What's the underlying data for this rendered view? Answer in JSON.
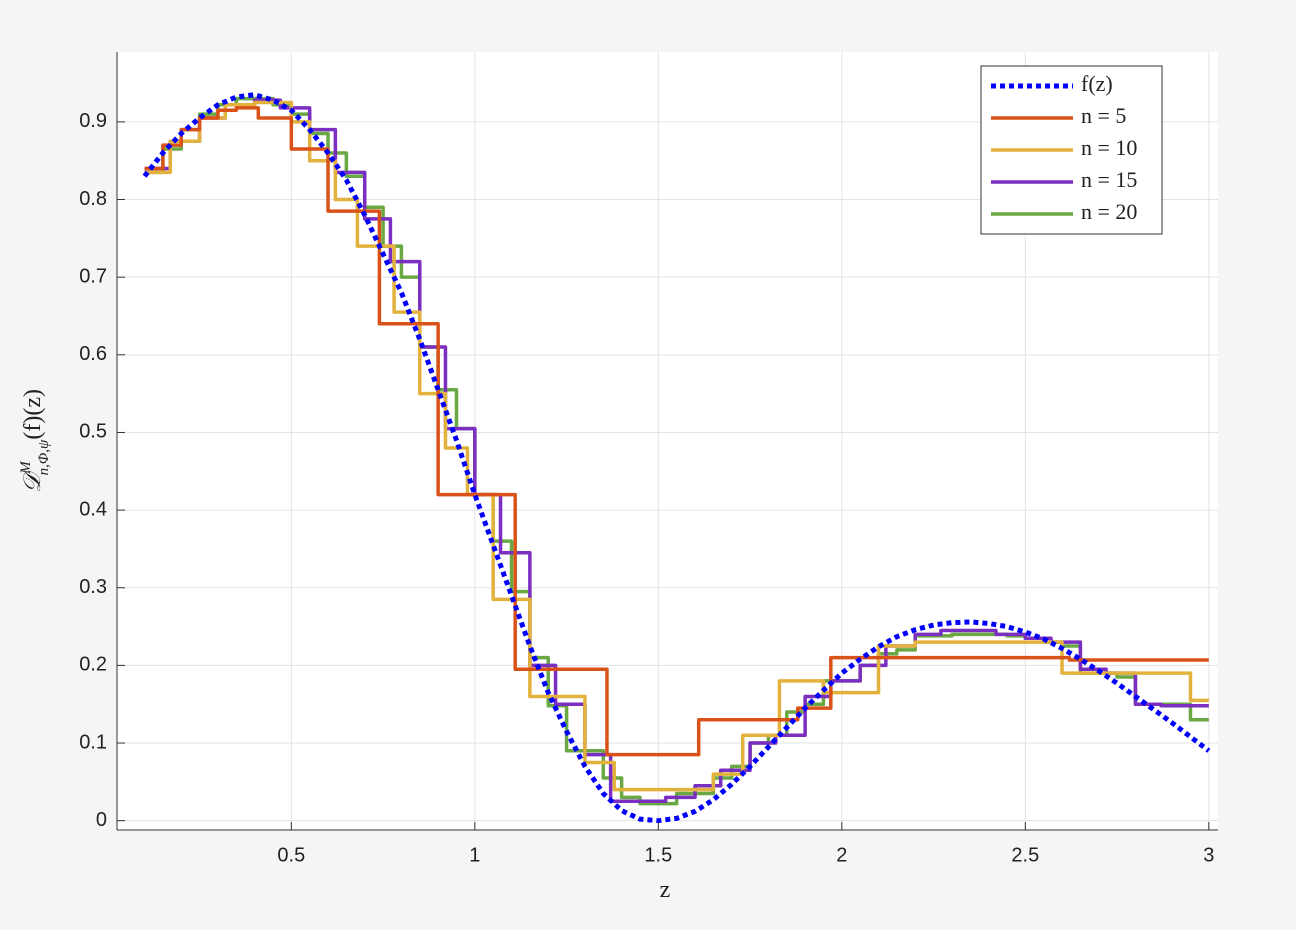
{
  "chart_data": {
    "type": "line",
    "xlabel": "z",
    "ylabel": {
      "base": "𝒟",
      "sup": "M",
      "sub": "n,Φ,ψ",
      "rest": "(f)(z)"
    },
    "xlim": [
      0.025,
      3.025
    ],
    "ylim": [
      -0.012,
      0.99
    ],
    "xticks": [
      0.5,
      1,
      1.5,
      2,
      2.5,
      3
    ],
    "yticks": [
      0,
      0.1,
      0.2,
      0.3,
      0.4,
      0.5,
      0.6,
      0.7,
      0.8,
      0.9
    ],
    "grid": true,
    "legend": "upper right",
    "series": [
      {
        "name": "f(z)",
        "color": "#0000ff",
        "line_style": "dotted",
        "step": false,
        "x": [
          0.1,
          0.15,
          0.2,
          0.25,
          0.3,
          0.35,
          0.4,
          0.45,
          0.5,
          0.55,
          0.6,
          0.65,
          0.7,
          0.75,
          0.8,
          0.85,
          0.9,
          0.95,
          1.0,
          1.05,
          1.1,
          1.15,
          1.2,
          1.25,
          1.3,
          1.35,
          1.4,
          1.45,
          1.5,
          1.55,
          1.6,
          1.65,
          1.7,
          1.75,
          1.8,
          1.85,
          1.9,
          1.95,
          2.0,
          2.05,
          2.1,
          2.15,
          2.2,
          2.25,
          2.3,
          2.35,
          2.4,
          2.45,
          2.5,
          2.55,
          2.6,
          2.65,
          2.7,
          2.75,
          2.8,
          2.85,
          2.9,
          2.95,
          3.0
        ],
        "values": [
          0.83,
          0.86,
          0.885,
          0.905,
          0.922,
          0.932,
          0.935,
          0.928,
          0.915,
          0.89,
          0.86,
          0.825,
          0.78,
          0.73,
          0.68,
          0.62,
          0.555,
          0.49,
          0.42,
          0.355,
          0.29,
          0.225,
          0.165,
          0.115,
          0.07,
          0.035,
          0.013,
          0.002,
          0.0,
          0.003,
          0.012,
          0.027,
          0.047,
          0.07,
          0.095,
          0.12,
          0.145,
          0.168,
          0.19,
          0.208,
          0.224,
          0.237,
          0.246,
          0.252,
          0.255,
          0.256,
          0.254,
          0.25,
          0.243,
          0.234,
          0.222,
          0.208,
          0.193,
          0.177,
          0.16,
          0.143,
          0.126,
          0.108,
          0.09
        ]
      },
      {
        "name": "n = 5",
        "color": "#d95319",
        "line_style": "solid",
        "step": true,
        "x": [
          0.1,
          0.15,
          0.2,
          0.25,
          0.3,
          0.35,
          0.41,
          0.5,
          0.6,
          0.74,
          0.9,
          1.11,
          1.36,
          1.61,
          1.88,
          1.97,
          2.62,
          3.0
        ],
        "values": [
          0.84,
          0.87,
          0.89,
          0.905,
          0.915,
          0.918,
          0.905,
          0.865,
          0.785,
          0.64,
          0.42,
          0.195,
          0.085,
          0.13,
          0.145,
          0.21,
          0.207,
          0.207
        ]
      },
      {
        "name": "n = 10",
        "color": "#e3b23c",
        "line_style": "solid",
        "step": true,
        "x": [
          0.1,
          0.17,
          0.25,
          0.32,
          0.4,
          0.5,
          0.55,
          0.62,
          0.68,
          0.78,
          0.85,
          0.92,
          0.98,
          1.05,
          1.15,
          1.3,
          1.38,
          1.65,
          1.73,
          1.83,
          1.95,
          2.1,
          2.2,
          2.6,
          2.95,
          3.0
        ],
        "values": [
          0.835,
          0.875,
          0.905,
          0.922,
          0.925,
          0.9,
          0.85,
          0.8,
          0.74,
          0.655,
          0.55,
          0.48,
          0.42,
          0.285,
          0.16,
          0.075,
          0.04,
          0.06,
          0.11,
          0.18,
          0.165,
          0.225,
          0.23,
          0.19,
          0.155,
          0.155
        ]
      },
      {
        "name": "n = 15",
        "color": "#7a2fc0",
        "line_style": "solid",
        "step": true,
        "x": [
          0.1,
          0.17,
          0.25,
          0.32,
          0.4,
          0.47,
          0.55,
          0.62,
          0.7,
          0.77,
          0.85,
          0.92,
          1.0,
          1.07,
          1.15,
          1.22,
          1.3,
          1.37,
          1.45,
          1.52,
          1.6,
          1.67,
          1.75,
          1.82,
          1.9,
          1.97,
          2.05,
          2.12,
          2.2,
          2.27,
          2.35,
          2.42,
          2.5,
          2.57,
          2.65,
          2.72,
          2.8,
          2.87,
          3.0
        ],
        "values": [
          0.84,
          0.875,
          0.905,
          0.922,
          0.928,
          0.918,
          0.89,
          0.835,
          0.775,
          0.72,
          0.61,
          0.505,
          0.42,
          0.345,
          0.2,
          0.15,
          0.085,
          0.025,
          0.025,
          0.03,
          0.045,
          0.065,
          0.1,
          0.11,
          0.16,
          0.18,
          0.2,
          0.225,
          0.24,
          0.245,
          0.245,
          0.24,
          0.235,
          0.23,
          0.195,
          0.19,
          0.15,
          0.148,
          0.148
        ]
      },
      {
        "name": "n = 20",
        "color": "#6aa843",
        "line_style": "solid",
        "step": true,
        "x": [
          0.1,
          0.15,
          0.2,
          0.25,
          0.3,
          0.35,
          0.4,
          0.45,
          0.5,
          0.55,
          0.6,
          0.65,
          0.7,
          0.75,
          0.8,
          0.85,
          0.9,
          0.95,
          1.0,
          1.05,
          1.1,
          1.15,
          1.2,
          1.25,
          1.3,
          1.35,
          1.4,
          1.45,
          1.5,
          1.55,
          1.6,
          1.65,
          1.7,
          1.75,
          1.8,
          1.85,
          1.9,
          1.95,
          2.0,
          2.05,
          2.1,
          2.15,
          2.2,
          2.25,
          2.3,
          2.35,
          2.4,
          2.45,
          2.5,
          2.55,
          2.6,
          2.65,
          2.7,
          2.75,
          2.8,
          2.85,
          2.9,
          2.95,
          3.0
        ],
        "values": [
          0.835,
          0.865,
          0.89,
          0.91,
          0.922,
          0.93,
          0.93,
          0.922,
          0.91,
          0.885,
          0.86,
          0.83,
          0.79,
          0.74,
          0.7,
          0.61,
          0.555,
          0.505,
          0.42,
          0.36,
          0.295,
          0.21,
          0.148,
          0.09,
          0.09,
          0.055,
          0.03,
          0.022,
          0.022,
          0.035,
          0.035,
          0.055,
          0.07,
          0.1,
          0.11,
          0.14,
          0.15,
          0.18,
          0.18,
          0.2,
          0.215,
          0.22,
          0.238,
          0.238,
          0.24,
          0.24,
          0.24,
          0.238,
          0.235,
          0.23,
          0.225,
          0.19,
          0.19,
          0.185,
          0.15,
          0.15,
          0.15,
          0.13,
          0.13
        ]
      }
    ]
  }
}
